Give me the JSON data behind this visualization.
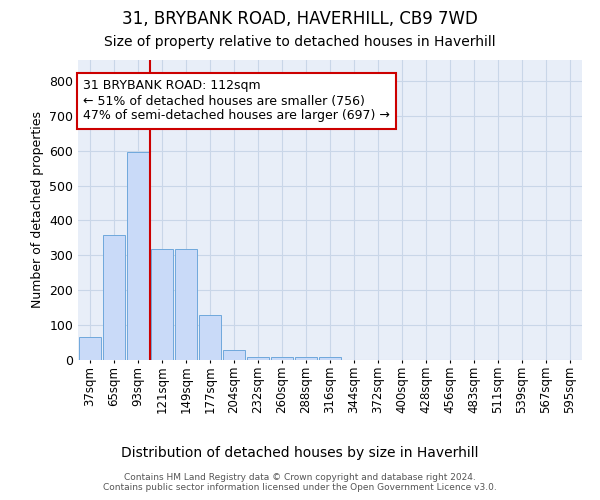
{
  "title": "31, BRYBANK ROAD, HAVERHILL, CB9 7WD",
  "subtitle": "Size of property relative to detached houses in Haverhill",
  "xlabel": "Distribution of detached houses by size in Haverhill",
  "ylabel": "Number of detached properties",
  "footer_line1": "Contains HM Land Registry data © Crown copyright and database right 2024.",
  "footer_line2": "Contains public sector information licensed under the Open Government Licence v3.0.",
  "bar_labels": [
    "37sqm",
    "65sqm",
    "93sqm",
    "121sqm",
    "149sqm",
    "177sqm",
    "204sqm",
    "232sqm",
    "260sqm",
    "288sqm",
    "316sqm",
    "344sqm",
    "372sqm",
    "400sqm",
    "428sqm",
    "456sqm",
    "483sqm",
    "511sqm",
    "539sqm",
    "567sqm",
    "595sqm"
  ],
  "bar_values": [
    65,
    358,
    595,
    318,
    318,
    130,
    30,
    8,
    8,
    8,
    8,
    0,
    0,
    0,
    0,
    0,
    0,
    0,
    0,
    0,
    0
  ],
  "bar_color": "#c9daf8",
  "bar_edge_color": "#6fa8dc",
  "grid_color": "#c9d6e8",
  "background_color": "#e8eef8",
  "vline_pos": 2.5,
  "vline_color": "#cc0000",
  "annotation_title": "31 BRYBANK ROAD: 112sqm",
  "annotation_line2": "← 51% of detached houses are smaller (756)",
  "annotation_line3": "47% of semi-detached houses are larger (697) →",
  "annotation_box_edgecolor": "#cc0000",
  "ylim": [
    0,
    860
  ],
  "yticks": [
    0,
    100,
    200,
    300,
    400,
    500,
    600,
    700,
    800
  ],
  "title_fontsize": 12,
  "subtitle_fontsize": 10,
  "ylabel_fontsize": 9,
  "xlabel_fontsize": 10,
  "annotation_fontsize": 9,
  "tick_fontsize": 8.5
}
